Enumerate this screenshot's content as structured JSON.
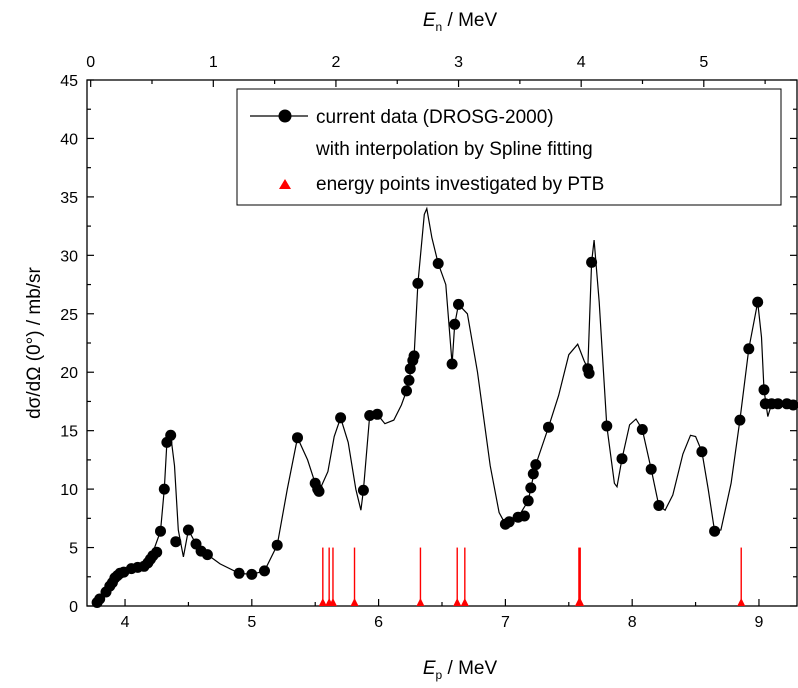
{
  "chart_data": {
    "type": "scatter",
    "title": "",
    "xlabel": {
      "main": "E",
      "sub": "p",
      "unit": " / MeV"
    },
    "x2label": {
      "main": "E",
      "sub": "n",
      "unit": " / MeV"
    },
    "ylabel": "dσ/dΩ (0°)   /   mb/sr",
    "xlim": [
      3.7,
      9.3
    ],
    "x2lim": [
      -0.03,
      5.76
    ],
    "ylim": [
      0,
      45
    ],
    "x_ticks": [
      4,
      5,
      6,
      7,
      8,
      9
    ],
    "x2_ticks": [
      0,
      1,
      2,
      3,
      4,
      5
    ],
    "y_ticks": [
      0,
      5,
      10,
      15,
      20,
      25,
      30,
      35,
      40,
      45
    ],
    "grid": false,
    "legend_position": "top-right",
    "colors": {
      "data": "#000000",
      "ptb": "#ff0000"
    },
    "legend": [
      {
        "label": "current data (DROSG-2000)",
        "marker": "circle-line"
      },
      {
        "label": "with interpolation by Spline fitting",
        "marker": "none"
      },
      {
        "label": "energy points investigated by PTB",
        "marker": "triangle"
      }
    ],
    "series": [
      {
        "name": "current data (DROSG-2000)",
        "type": "scatter",
        "points": [
          [
            3.78,
            0.3
          ],
          [
            3.8,
            0.6
          ],
          [
            3.85,
            1.2
          ],
          [
            3.88,
            1.7
          ],
          [
            3.9,
            2.0
          ],
          [
            3.92,
            2.4
          ],
          [
            3.94,
            2.6
          ],
          [
            3.96,
            2.8
          ],
          [
            3.99,
            2.9
          ],
          [
            4.05,
            3.2
          ],
          [
            4.1,
            3.3
          ],
          [
            4.15,
            3.4
          ],
          [
            4.18,
            3.7
          ],
          [
            4.2,
            4.0
          ],
          [
            4.22,
            4.3
          ],
          [
            4.25,
            4.6
          ],
          [
            4.28,
            6.4
          ],
          [
            4.31,
            10.0
          ],
          [
            4.33,
            14.0
          ],
          [
            4.36,
            14.6
          ],
          [
            4.4,
            5.5
          ],
          [
            4.5,
            6.5
          ],
          [
            4.56,
            5.3
          ],
          [
            4.6,
            4.7
          ],
          [
            4.65,
            4.4
          ],
          [
            4.9,
            2.8
          ],
          [
            5.0,
            2.7
          ],
          [
            5.1,
            3.0
          ],
          [
            5.2,
            5.2
          ],
          [
            5.36,
            14.4
          ],
          [
            5.5,
            10.5
          ],
          [
            5.52,
            10.0
          ],
          [
            5.53,
            9.8
          ],
          [
            5.7,
            16.1
          ],
          [
            5.88,
            9.9
          ],
          [
            5.93,
            16.3
          ],
          [
            5.99,
            16.4
          ],
          [
            6.22,
            18.4
          ],
          [
            6.24,
            19.3
          ],
          [
            6.25,
            20.3
          ],
          [
            6.27,
            21.0
          ],
          [
            6.28,
            21.4
          ],
          [
            6.31,
            27.6
          ],
          [
            6.47,
            29.3
          ],
          [
            6.58,
            20.7
          ],
          [
            6.6,
            24.1
          ],
          [
            6.63,
            25.8
          ],
          [
            7.0,
            7.0
          ],
          [
            7.03,
            7.2
          ],
          [
            7.1,
            7.6
          ],
          [
            7.15,
            7.7
          ],
          [
            7.18,
            9.0
          ],
          [
            7.2,
            10.1
          ],
          [
            7.22,
            11.3
          ],
          [
            7.24,
            12.1
          ],
          [
            7.34,
            15.3
          ],
          [
            7.65,
            20.3
          ],
          [
            7.66,
            19.9
          ],
          [
            7.68,
            29.4
          ],
          [
            7.8,
            15.4
          ],
          [
            7.92,
            12.6
          ],
          [
            8.08,
            15.1
          ],
          [
            8.15,
            11.7
          ],
          [
            8.21,
            8.6
          ],
          [
            8.55,
            13.2
          ],
          [
            8.65,
            6.4
          ],
          [
            8.85,
            15.9
          ],
          [
            8.92,
            22.0
          ],
          [
            8.99,
            26.0
          ],
          [
            9.04,
            18.5
          ],
          [
            9.05,
            17.3
          ],
          [
            9.1,
            17.3
          ],
          [
            9.15,
            17.3
          ],
          [
            9.22,
            17.3
          ],
          [
            9.27,
            17.2
          ]
        ]
      },
      {
        "name": "with interpolation by Spline fitting",
        "type": "line",
        "points": [
          [
            3.78,
            0.3
          ],
          [
            3.85,
            1.2
          ],
          [
            3.92,
            2.4
          ],
          [
            4.0,
            2.9
          ],
          [
            4.1,
            3.3
          ],
          [
            4.2,
            4.0
          ],
          [
            4.28,
            6.4
          ],
          [
            4.31,
            10.0
          ],
          [
            4.33,
            14.0
          ],
          [
            4.36,
            14.6
          ],
          [
            4.39,
            12.0
          ],
          [
            4.42,
            6.5
          ],
          [
            4.46,
            4.2
          ],
          [
            4.5,
            6.5
          ],
          [
            4.56,
            5.3
          ],
          [
            4.65,
            4.4
          ],
          [
            4.75,
            3.6
          ],
          [
            4.9,
            2.8
          ],
          [
            5.0,
            2.7
          ],
          [
            5.1,
            3.0
          ],
          [
            5.2,
            5.2
          ],
          [
            5.28,
            10.0
          ],
          [
            5.36,
            14.4
          ],
          [
            5.44,
            12.5
          ],
          [
            5.5,
            10.5
          ],
          [
            5.53,
            9.8
          ],
          [
            5.6,
            11.5
          ],
          [
            5.65,
            14.5
          ],
          [
            5.7,
            16.1
          ],
          [
            5.76,
            14.0
          ],
          [
            5.82,
            10.0
          ],
          [
            5.86,
            8.2
          ],
          [
            5.88,
            9.9
          ],
          [
            5.93,
            16.3
          ],
          [
            5.99,
            16.4
          ],
          [
            6.05,
            15.6
          ],
          [
            6.12,
            15.9
          ],
          [
            6.18,
            17.2
          ],
          [
            6.22,
            18.4
          ],
          [
            6.28,
            21.4
          ],
          [
            6.31,
            27.6
          ],
          [
            6.36,
            33.5
          ],
          [
            6.38,
            34.0
          ],
          [
            6.42,
            31.5
          ],
          [
            6.47,
            29.3
          ],
          [
            6.53,
            27.5
          ],
          [
            6.58,
            20.7
          ],
          [
            6.6,
            24.1
          ],
          [
            6.63,
            25.8
          ],
          [
            6.7,
            25.0
          ],
          [
            6.78,
            20.0
          ],
          [
            6.88,
            12.0
          ],
          [
            6.95,
            8.0
          ],
          [
            7.0,
            7.0
          ],
          [
            7.1,
            7.6
          ],
          [
            7.18,
            9.0
          ],
          [
            7.24,
            12.1
          ],
          [
            7.34,
            15.3
          ],
          [
            7.42,
            18.0
          ],
          [
            7.5,
            21.5
          ],
          [
            7.57,
            22.4
          ],
          [
            7.62,
            21.0
          ],
          [
            7.65,
            20.3
          ],
          [
            7.68,
            29.4
          ],
          [
            7.7,
            31.3
          ],
          [
            7.74,
            26.0
          ],
          [
            7.8,
            15.4
          ],
          [
            7.86,
            10.5
          ],
          [
            7.88,
            10.2
          ],
          [
            7.92,
            12.6
          ],
          [
            7.98,
            15.5
          ],
          [
            8.03,
            16.0
          ],
          [
            8.08,
            15.1
          ],
          [
            8.15,
            11.7
          ],
          [
            8.21,
            8.6
          ],
          [
            8.26,
            8.2
          ],
          [
            8.32,
            9.5
          ],
          [
            8.4,
            13.0
          ],
          [
            8.46,
            14.6
          ],
          [
            8.5,
            14.5
          ],
          [
            8.55,
            13.2
          ],
          [
            8.6,
            10.0
          ],
          [
            8.65,
            6.4
          ],
          [
            8.7,
            6.5
          ],
          [
            8.78,
            10.5
          ],
          [
            8.85,
            15.9
          ],
          [
            8.92,
            22.0
          ],
          [
            8.99,
            26.0
          ],
          [
            9.02,
            23.0
          ],
          [
            9.04,
            18.5
          ],
          [
            9.07,
            16.2
          ],
          [
            9.1,
            17.3
          ],
          [
            9.15,
            17.3
          ],
          [
            9.22,
            17.3
          ],
          [
            9.27,
            17.2
          ]
        ]
      },
      {
        "name": "energy points investigated by PTB",
        "type": "marker",
        "x": [
          5.56,
          5.61,
          5.64,
          5.81,
          6.33,
          6.62,
          6.68,
          7.58,
          7.59,
          8.86
        ]
      }
    ]
  }
}
